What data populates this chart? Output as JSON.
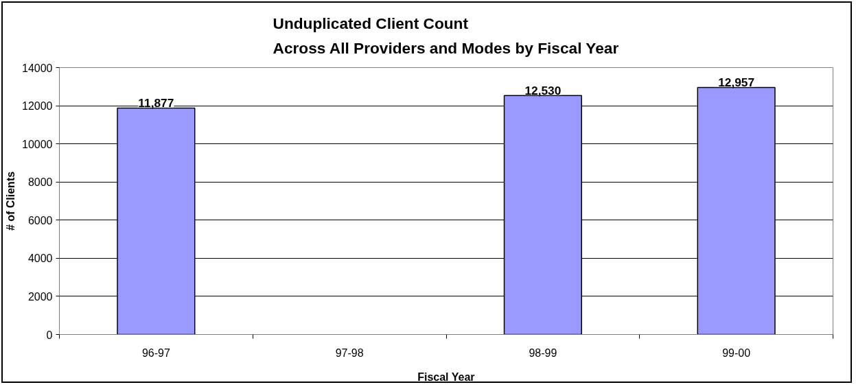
{
  "chart_data": {
    "type": "bar",
    "title": "Unduplicated Client Count\nAcross All Providers and Modes by Fiscal Year",
    "xlabel": "Fiscal Year",
    "ylabel": "# of Clients",
    "categories": [
      "96-97",
      "97-98",
      "98-99",
      "99-00"
    ],
    "values": [
      11877,
      null,
      12530,
      12957
    ],
    "value_labels": [
      "11,877",
      null,
      "12,530",
      "12,957"
    ],
    "color": "#9999ff",
    "ylim": [
      0,
      14000
    ],
    "yticks": [
      0,
      2000,
      4000,
      6000,
      8000,
      10000,
      12000,
      14000
    ],
    "grid": "y"
  }
}
